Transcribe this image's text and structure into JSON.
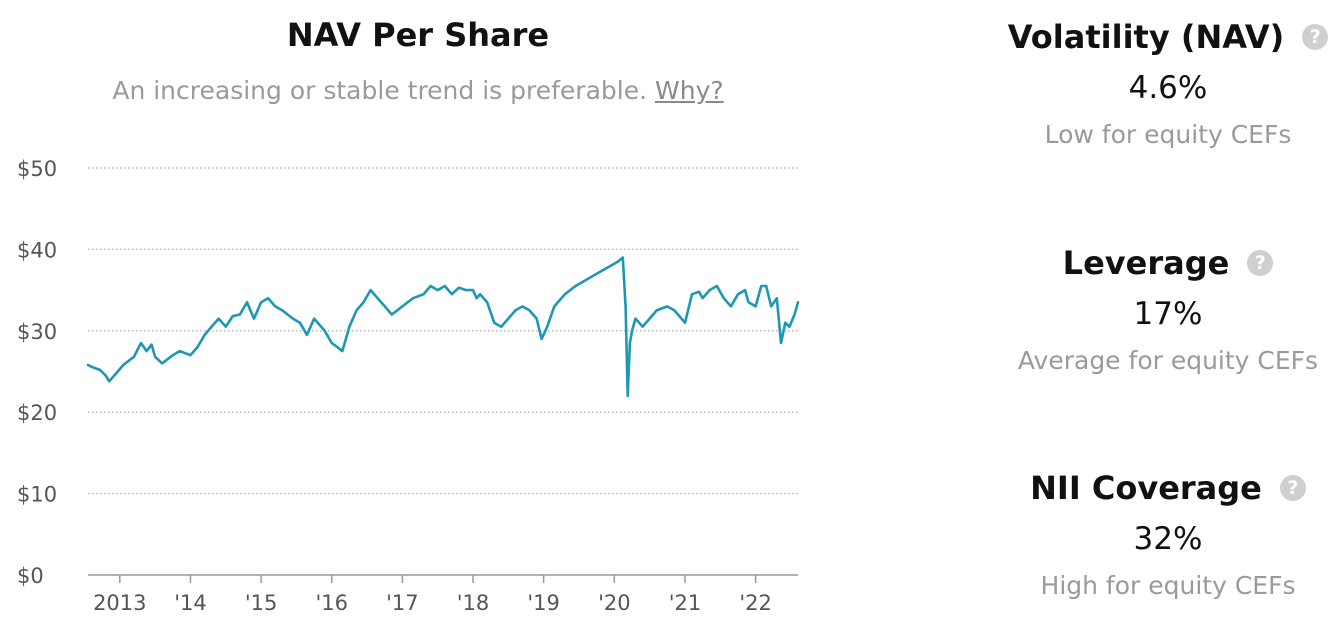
{
  "chart": {
    "title": "NAV Per Share",
    "subtitle": "An increasing or stable trend is preferable.",
    "why_link": "Why?"
  },
  "chart_data": {
    "type": "line",
    "title": "NAV Per Share",
    "ylim": [
      0,
      50
    ],
    "y_ticks": [
      0,
      10,
      20,
      30,
      40,
      50
    ],
    "y_tick_labels": [
      "$0",
      "$10",
      "$20",
      "$30",
      "$40",
      "$50"
    ],
    "x_range": [
      2012.55,
      2022.6
    ],
    "x_ticks": [
      2013,
      2014,
      2015,
      2016,
      2017,
      2018,
      2019,
      2020,
      2021,
      2022
    ],
    "x_tick_labels": [
      "2013",
      "'14",
      "'15",
      "'16",
      "'17",
      "'18",
      "'19",
      "'20",
      "'21",
      "'22"
    ],
    "grid": true,
    "line_color": "#1d97b3",
    "series": [
      {
        "x": [
          2012.55,
          2012.62,
          2012.72,
          2012.8,
          2012.85,
          2012.95,
          2013.05,
          2013.2,
          2013.3,
          2013.38,
          2013.45,
          2013.5,
          2013.6,
          2013.75,
          2013.85,
          2014.0,
          2014.1,
          2014.2,
          2014.3,
          2014.4,
          2014.5,
          2014.6,
          2014.7,
          2014.8,
          2014.9,
          2015.0,
          2015.1,
          2015.2,
          2015.3,
          2015.45,
          2015.55,
          2015.65,
          2015.75,
          2015.9,
          2016.0,
          2016.08,
          2016.15,
          2016.25,
          2016.35,
          2016.45,
          2016.55,
          2016.7,
          2016.85,
          2017.0,
          2017.15,
          2017.3,
          2017.4,
          2017.5,
          2017.6,
          2017.7,
          2017.8,
          2017.9,
          2018.0,
          2018.05,
          2018.1,
          2018.2,
          2018.3,
          2018.4,
          2018.5,
          2018.6,
          2018.7,
          2018.8,
          2018.9,
          2018.97,
          2019.05,
          2019.15,
          2019.3,
          2019.45,
          2019.55,
          2019.65,
          2019.75,
          2019.85,
          2019.95,
          2020.05,
          2020.12,
          2020.16,
          2020.19,
          2020.22,
          2020.25,
          2020.3,
          2020.4,
          2020.5,
          2020.6,
          2020.75,
          2020.85,
          2021.0,
          2021.1,
          2021.2,
          2021.25,
          2021.35,
          2021.45,
          2021.55,
          2021.65,
          2021.75,
          2021.85,
          2021.9,
          2022.0,
          2022.08,
          2022.15,
          2022.22,
          2022.3,
          2022.36,
          2022.42,
          2022.48,
          2022.55,
          2022.6
        ],
        "y": [
          25.8,
          25.5,
          25.2,
          24.5,
          23.8,
          24.8,
          25.8,
          26.8,
          28.5,
          27.5,
          28.3,
          26.8,
          26.0,
          27.0,
          27.5,
          27.0,
          28.0,
          29.5,
          30.5,
          31.5,
          30.5,
          31.8,
          32.0,
          33.5,
          31.5,
          33.5,
          34.0,
          33.0,
          32.5,
          31.5,
          31.0,
          29.5,
          31.5,
          30.0,
          28.5,
          28.0,
          27.5,
          30.5,
          32.5,
          33.5,
          35.0,
          33.5,
          32.0,
          33.0,
          34.0,
          34.5,
          35.5,
          35.0,
          35.5,
          34.5,
          35.3,
          35.0,
          35.0,
          34.0,
          34.5,
          33.5,
          31.0,
          30.5,
          31.5,
          32.5,
          33.0,
          32.5,
          31.5,
          29.0,
          30.5,
          33.0,
          34.5,
          35.5,
          36.0,
          36.5,
          37.0,
          37.5,
          38.0,
          38.5,
          39.0,
          33.0,
          22.0,
          28.5,
          30.0,
          31.5,
          30.5,
          31.5,
          32.5,
          33.0,
          32.5,
          31.0,
          34.5,
          34.8,
          34.0,
          35.0,
          35.5,
          34.0,
          33.0,
          34.5,
          35.0,
          33.5,
          33.0,
          35.5,
          35.5,
          33.0,
          34.0,
          28.5,
          31.0,
          30.5,
          32.0,
          33.5
        ]
      }
    ]
  },
  "metrics": [
    {
      "title": "Volatility (NAV)",
      "value": "4.6%",
      "desc": "Low for equity CEFs"
    },
    {
      "title": "Leverage",
      "value": "17%",
      "desc": "Average for equity CEFs"
    },
    {
      "title": "NII Coverage",
      "value": "32%",
      "desc": "High for equity CEFs"
    }
  ],
  "icons": {
    "help": "question-circle-icon",
    "help_glyph": "?"
  },
  "colors": {
    "accent_line": "#1d97b3",
    "muted_text": "#9a9a9a",
    "help_icon_bg": "#cfcfcf"
  }
}
